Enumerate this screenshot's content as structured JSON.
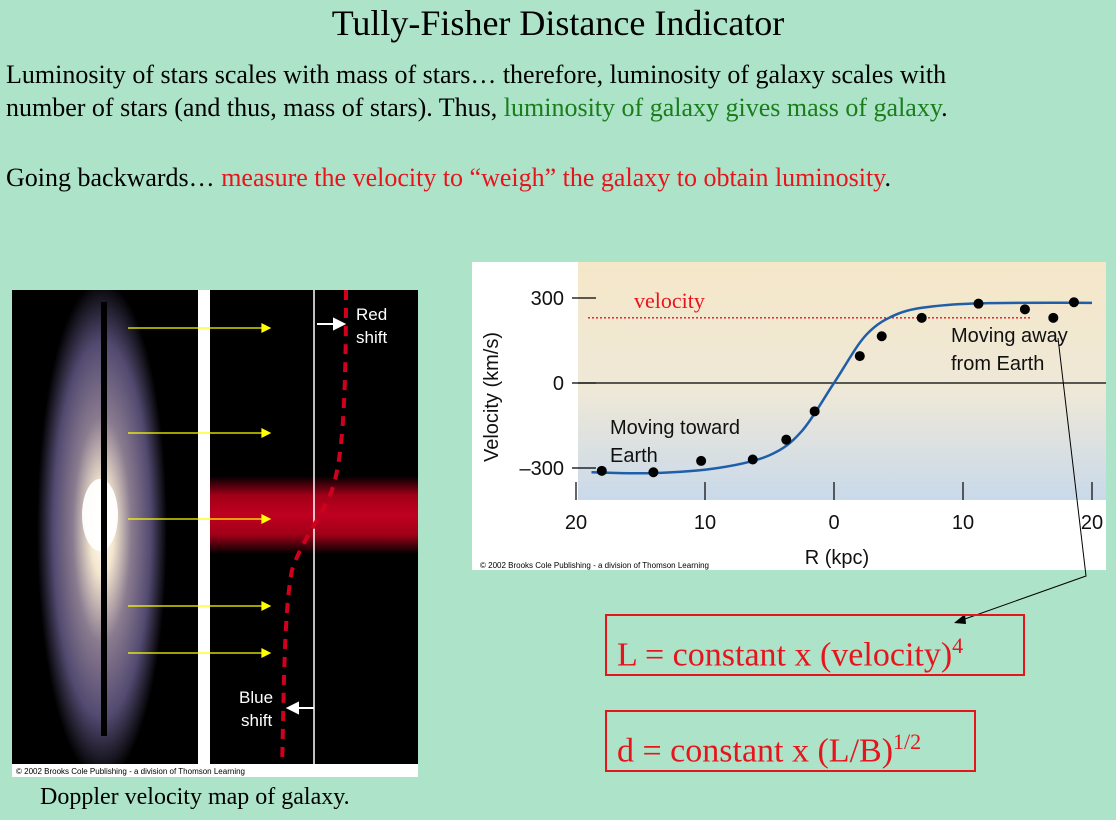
{
  "title": "Tully-Fisher Distance Indicator",
  "intro": {
    "line1": "Luminosity of stars scales with mass of stars… therefore, luminosity of galaxy scales with",
    "line2_black": "number of stars (and thus, mass of stars).  Thus, ",
    "line2_green": "luminosity of galaxy gives mass of galaxy",
    "line2_end": "."
  },
  "backwards": {
    "black": "Going backwards…  ",
    "red": "measure the velocity to “weigh” the galaxy to obtain luminosity",
    "end": "."
  },
  "doppler_map": {
    "red_label_1": "Red",
    "red_label_2": "shift",
    "blue_label_1": "Blue",
    "blue_label_2": "shift",
    "copyright": "© 2002 Brooks Cole Publishing - a division of Thomson Learning",
    "caption": "Doppler velocity map of galaxy."
  },
  "chart_data": {
    "type": "scatter",
    "xlabel": "R (kpc)",
    "ylabel": "Velocity (km/s)",
    "x_ticks": [
      "20",
      "10",
      "0",
      "10",
      "20"
    ],
    "y_ticks": [
      "300",
      "0",
      "–300"
    ],
    "ylim": [
      -330,
      330
    ],
    "xlim": [
      20,
      -20
    ],
    "velocity_label": "velocity",
    "velocity_level": 230,
    "annotations": {
      "toward_1": "Moving toward",
      "toward_2": "Earth",
      "away_1": "Moving away",
      "away_2": "from Earth"
    },
    "copyright": "© 2002 Brooks Cole Publishing - a division of Thomson Learning",
    "points": [
      {
        "x": 18,
        "y": -310
      },
      {
        "x": 14,
        "y": -315
      },
      {
        "x": 10.3,
        "y": -275
      },
      {
        "x": 6.3,
        "y": -270
      },
      {
        "x": 3.7,
        "y": -200
      },
      {
        "x": 1.5,
        "y": -100
      },
      {
        "x": -2,
        "y": 95
      },
      {
        "x": -3.7,
        "y": 165
      },
      {
        "x": -6.8,
        "y": 230
      },
      {
        "x": -11.2,
        "y": 280
      },
      {
        "x": -14.8,
        "y": 260
      },
      {
        "x": -17,
        "y": 230
      },
      {
        "x": -18.6,
        "y": 285
      }
    ],
    "curve": [
      {
        "x": 18.8,
        "y": -315
      },
      {
        "x": 14,
        "y": -318
      },
      {
        "x": 9,
        "y": -300
      },
      {
        "x": 5,
        "y": -255
      },
      {
        "x": 2.5,
        "y": -170
      },
      {
        "x": 0,
        "y": 0
      },
      {
        "x": -2.5,
        "y": 170
      },
      {
        "x": -5,
        "y": 245
      },
      {
        "x": -8,
        "y": 272
      },
      {
        "x": -12,
        "y": 282
      },
      {
        "x": -20,
        "y": 283
      }
    ]
  },
  "formulas": {
    "f1_text": "L = constant x (velocity)",
    "f1_exp": "4",
    "f2_text": "d = constant x (L/B)",
    "f2_exp": "1/2"
  }
}
